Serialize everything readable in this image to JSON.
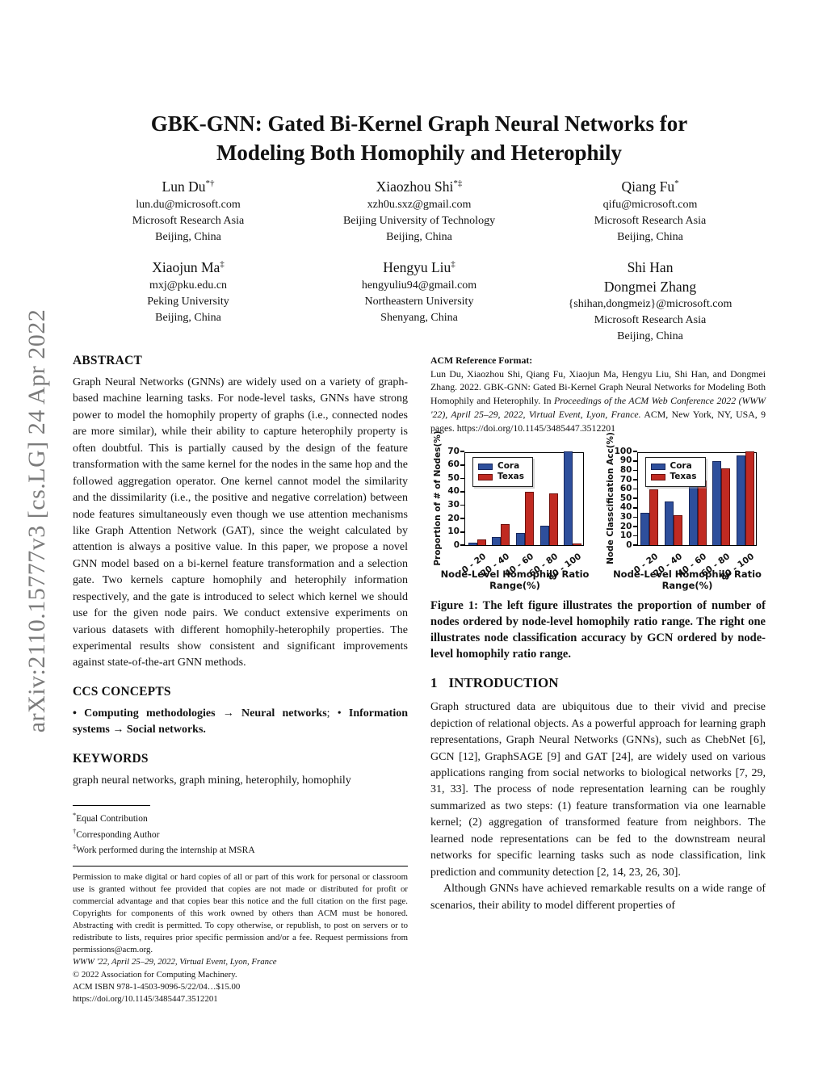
{
  "arxiv_banner": "arXiv:2110.15777v3  [cs.LG]  24 Apr 2022",
  "title": {
    "line1": "GBK-GNN: Gated Bi-Kernel Graph Neural Networks for",
    "line2": "Modeling Both Homophily and Heterophily"
  },
  "authors": [
    {
      "name": "Lun Du",
      "marks": "*†",
      "email": "lun.du@microsoft.com",
      "affiliation": "Microsoft Research Asia",
      "location": "Beijing, China"
    },
    {
      "name": "Xiaozhou Shi",
      "marks": "*‡",
      "email": "xzh0u.sxz@gmail.com",
      "affiliation": "Beijing University of Technology",
      "location": "Beijing, China"
    },
    {
      "name": "Qiang Fu",
      "marks": "*",
      "email": "qifu@microsoft.com",
      "affiliation": "Microsoft Research Asia",
      "location": "Beijing, China"
    },
    {
      "name": "Xiaojun Ma",
      "marks": "‡",
      "email": "mxj@pku.edu.cn",
      "affiliation": "Peking University",
      "location": "Beijing, China"
    },
    {
      "name": "Hengyu Liu",
      "marks": "‡",
      "email": "hengyuliu94@gmail.com",
      "affiliation": "Northeastern University",
      "location": "Shenyang, China"
    },
    {
      "name": "Shi Han",
      "name2": "Dongmei Zhang",
      "marks": "",
      "email": "{shihan,dongmeiz}@microsoft.com",
      "affiliation": "Microsoft Research Asia",
      "location": "Beijing, China"
    }
  ],
  "abstract": {
    "heading": "ABSTRACT",
    "text": "Graph Neural Networks (GNNs) are widely used on a variety of graph-based machine learning tasks. For node-level tasks, GNNs have strong power to model the homophily property of graphs (i.e., connected nodes are more similar), while their ability to capture heterophily property is often doubtful. This is partially caused by the design of the feature transformation with the same kernel for the nodes in the same hop and the followed aggregation operator. One kernel cannot model the similarity and the dissimilarity (i.e., the positive and negative correlation) between node features simultaneously even though we use attention mechanisms like Graph Attention Network (GAT), since the weight calculated by attention is always a positive value. In this paper, we propose a novel GNN model based on a bi-kernel feature transformation and a selection gate. Two kernels capture homophily and heterophily information respectively, and the gate is introduced to select which kernel we should use for the given node pairs. We conduct extensive experiments on various datasets with different homophily-heterophily properties. The experimental results show consistent and significant improvements against state-of-the-art GNN methods."
  },
  "ccs": {
    "heading": "CCS CONCEPTS",
    "bullet1": "• ",
    "bold1": "Computing methodologies",
    "arrow1": " → ",
    "bold2": "Neural networks",
    "sep": "; • ",
    "bold3": "Information systems",
    "arrow2": " → ",
    "bold4": "Social networks",
    "period": "."
  },
  "keywords": {
    "heading": "KEYWORDS",
    "text": "graph neural networks, graph mining, heterophily, homophily"
  },
  "footnotes": [
    {
      "mark": "*",
      "text": "Equal Contribution"
    },
    {
      "mark": "†",
      "text": "Corresponding Author"
    },
    {
      "mark": "‡",
      "text": "Work performed during the internship at MSRA"
    }
  ],
  "permission": {
    "text": "Permission to make digital or hard copies of all or part of this work for personal or classroom use is granted without fee provided that copies are not made or distributed for profit or commercial advantage and that copies bear this notice and the full citation on the first page. Copyrights for components of this work owned by others than ACM must be honored. Abstracting with credit is permitted. To copy otherwise, or republish, to post on servers or to redistribute to lists, requires prior specific permission and/or a fee. Request permissions from permissions@acm.org.",
    "conference": "WWW '22, April 25–29, 2022, Virtual Event, Lyon, France",
    "copyright": "© 2022 Association for Computing Machinery.",
    "isbn": "ACM ISBN 978-1-4503-9096-5/22/04…$15.00",
    "doi": "https://doi.org/10.1145/3485447.3512201"
  },
  "acm_ref": {
    "heading": "ACM Reference Format:",
    "part1": "Lun Du, Xiaozhou Shi, Qiang Fu, Xiaojun Ma, Hengyu Liu, Shi Han, and Dongmei Zhang. 2022. GBK-GNN: Gated Bi-Kernel Graph Neural Networks for Modeling Both Homophily and Heterophily. In ",
    "italic": "Proceedings of the ACM Web Conference 2022 (WWW '22), April 25–29, 2022, Virtual Event, Lyon, France.",
    "part2": " ACM, New York, NY, USA, 9 pages. https://doi.org/10.1145/3485447.3512201"
  },
  "figure": {
    "caption": "Figure 1: The left figure illustrates the proportion of number of nodes ordered by node-level homophily ratio range. The right one illustrates node classification accuracy by GCN ordered by node-level homophily ratio range."
  },
  "chart_data": [
    {
      "type": "bar",
      "categories": [
        "0 - 20",
        "20 - 40",
        "40 - 60",
        "60 - 80",
        "80 - 100"
      ],
      "series": [
        {
          "name": "Cora",
          "color": "#2e4f9c",
          "edge": "#17275c",
          "values": [
            2,
            6,
            9,
            14.5,
            70
          ]
        },
        {
          "name": "Texas",
          "color": "#c02a22",
          "edge": "#6e110d",
          "values": [
            4.5,
            16,
            40,
            38.5,
            1.5
          ]
        }
      ],
      "xlabel": "Node-Level Homophily Ratio Range(%)",
      "ylabel": "Proportion of # of Nodes(%)",
      "ylim": [
        0,
        70
      ],
      "yticks": [
        0,
        10,
        20,
        30,
        40,
        50,
        60,
        70
      ],
      "grid": false,
      "legend_position": "upper-left"
    },
    {
      "type": "bar",
      "categories": [
        "0 - 20",
        "20 - 40",
        "40 - 60",
        "60 - 80",
        "80 - 100"
      ],
      "series": [
        {
          "name": "Cora",
          "color": "#2e4f9c",
          "edge": "#17275c",
          "values": [
            35,
            47,
            69,
            90,
            96
          ]
        },
        {
          "name": "Texas",
          "color": "#c02a22",
          "edge": "#6e110d",
          "values": [
            59.5,
            32.5,
            69.5,
            82,
            100
          ]
        }
      ],
      "xlabel": "Node-Level Homophily Ratio Range(%)",
      "ylabel": "Node Classcification  Acc(%)",
      "ylim": [
        0,
        100
      ],
      "yticks": [
        0,
        10,
        20,
        30,
        40,
        50,
        60,
        70,
        80,
        90,
        100
      ],
      "grid": false,
      "legend_position": "upper-left"
    }
  ],
  "intro": {
    "number": "1",
    "heading": "INTRODUCTION",
    "p1": "Graph structured data are ubiquitous due to their vivid and precise depiction of relational objects. As a powerful approach for learning graph representations, Graph Neural Networks (GNNs), such as ChebNet [6], GCN [12], GraphSAGE [9] and GAT [24], are widely used on various applications ranging from social networks to biological networks [7, 29, 31, 33]. The process of node representation learning can be roughly summarized as two steps: (1) feature transformation via one learnable kernel; (2) aggregation of transformed feature from neighbors. The learned node representations can be fed to the downstream neural networks for specific learning tasks such as node classification, link prediction and community detection [2, 14, 23, 26, 30].",
    "p2": "Although GNNs have achieved remarkable results on a wide range of scenarios, their ability to model different properties of"
  },
  "colors": {
    "bar_blue": "#2e4f9c",
    "bar_red": "#c02a22",
    "arxiv_gray": "#7b7b7b"
  }
}
